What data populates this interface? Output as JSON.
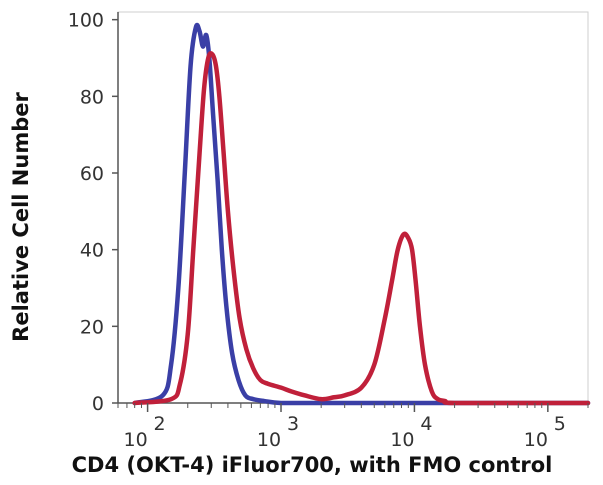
{
  "chart_data": {
    "type": "line",
    "title": "",
    "xlabel": "CD4 (OKT-4) iFluor700, with FMO control",
    "ylabel": "Relative Cell Number",
    "x_scale": "log",
    "xlim": [
      60,
      200000
    ],
    "ylim": [
      0,
      102
    ],
    "y_ticks": [
      {
        "value": 0,
        "label": "0"
      },
      {
        "value": 20,
        "label": "20"
      },
      {
        "value": 40,
        "label": "40"
      },
      {
        "value": 60,
        "label": "60"
      },
      {
        "value": 80,
        "label": "80"
      },
      {
        "value": 100,
        "label": "100"
      }
    ],
    "x_ticks": [
      {
        "value": 100,
        "base": "10",
        "exp": "2"
      },
      {
        "value": 1000,
        "base": "10",
        "exp": "3"
      },
      {
        "value": 10000,
        "base": "10",
        "exp": "4"
      },
      {
        "value": 100000,
        "base": "10",
        "exp": "5"
      }
    ],
    "grid": false,
    "legend": "none",
    "series": [
      {
        "color": "#3a3fa6",
        "x": [
          80,
          130,
          150,
          170,
          190,
          210,
          230,
          245,
          260,
          275,
          290,
          310,
          335,
          360,
          390,
          430,
          480,
          540,
          620,
          750,
          1000,
          2000,
          5000,
          10000,
          100000,
          200000
        ],
        "y": [
          0,
          2,
          10,
          30,
          60,
          88,
          98,
          97,
          93,
          96,
          90,
          75,
          58,
          40,
          25,
          13,
          6,
          2,
          1,
          0.5,
          0,
          0,
          0,
          0,
          0,
          0
        ]
      },
      {
        "color": "#c0203a",
        "x": [
          80,
          150,
          175,
          200,
          220,
          245,
          265,
          285,
          305,
          325,
          345,
          370,
          400,
          440,
          490,
          550,
          620,
          700,
          800,
          1000,
          1200,
          1500,
          2000,
          2500,
          3000,
          4000,
          5000,
          6000,
          6800,
          7500,
          8300,
          9000,
          9600,
          10200,
          11000,
          12000,
          13500,
          15000,
          17000,
          20000,
          100000,
          200000
        ],
        "y": [
          0,
          1,
          5,
          18,
          40,
          65,
          82,
          90,
          91,
          88,
          80,
          66,
          50,
          35,
          22,
          14,
          9,
          6,
          5,
          4,
          3,
          2,
          1,
          1.5,
          2,
          4,
          10,
          22,
          32,
          40,
          44,
          43,
          40,
          32,
          20,
          10,
          3,
          1,
          0.5,
          0,
          0,
          0
        ]
      }
    ]
  }
}
